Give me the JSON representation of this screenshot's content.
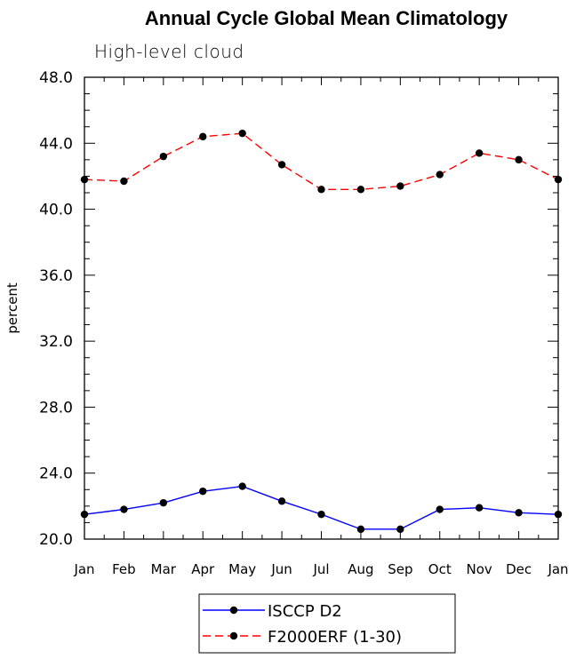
{
  "chart_data": {
    "type": "line",
    "title": "Annual Cycle Global Mean Climatology",
    "subtitle": "High-level cloud",
    "xlabel": "",
    "ylabel": "percent",
    "categories": [
      "Jan",
      "Feb",
      "Mar",
      "Apr",
      "May",
      "Jun",
      "Jul",
      "Aug",
      "Sep",
      "Oct",
      "Nov",
      "Dec",
      "Jan"
    ],
    "ylim": [
      20.0,
      48.0
    ],
    "yticks": [
      "20.0",
      "24.0",
      "28.0",
      "32.0",
      "36.0",
      "40.0",
      "44.0",
      "48.0"
    ],
    "series": [
      {
        "name": "ISCCP D2",
        "color": "#0000ff",
        "dash": "solid",
        "values": [
          21.5,
          21.8,
          22.2,
          22.9,
          23.2,
          22.3,
          21.5,
          20.6,
          20.6,
          21.8,
          21.9,
          21.6,
          21.5
        ]
      },
      {
        "name": "F2000ERF (1-30)",
        "color": "#ff0000",
        "dash": "dashed",
        "values": [
          41.8,
          41.7,
          43.2,
          44.4,
          44.6,
          42.7,
          41.2,
          41.2,
          41.4,
          42.1,
          43.4,
          43.0,
          41.8
        ]
      }
    ],
    "legend_position": "bottom-center",
    "grid": false
  }
}
